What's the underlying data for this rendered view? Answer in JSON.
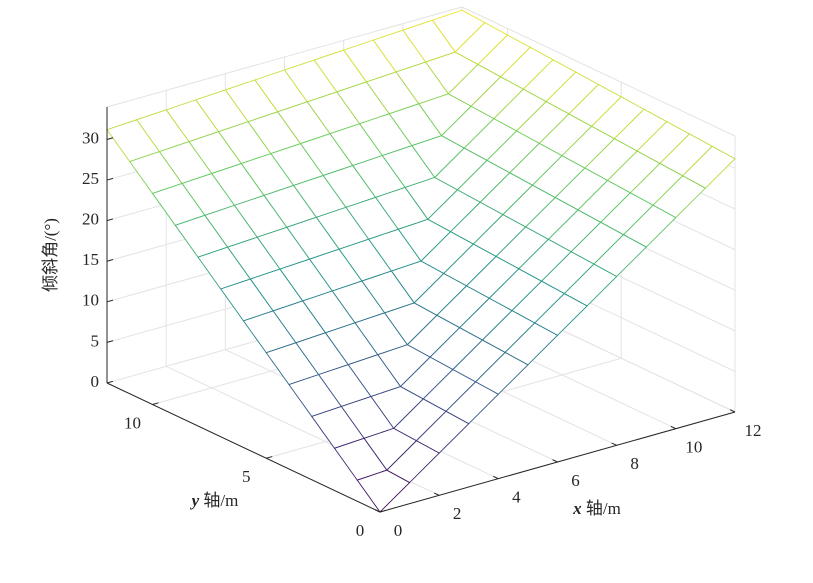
{
  "chart_data": {
    "type": "surface",
    "zlabel": "倾斜角/(°)",
    "xlabel_var": "x",
    "xlabel": "轴/m",
    "ylabel_var": "y",
    "ylabel": "轴/m",
    "x": [
      0,
      1,
      2,
      3,
      4,
      5,
      6,
      7,
      8,
      9,
      10,
      11,
      12
    ],
    "y": [
      0,
      1,
      2,
      3,
      4,
      5,
      6,
      7,
      8,
      9,
      10,
      11,
      12
    ],
    "z": [
      [
        0,
        2.6,
        5.2,
        7.8,
        10.4,
        13,
        15.6,
        18.2,
        20.8,
        23.4,
        26,
        28.6,
        31.2
      ],
      [
        2.6,
        2.8,
        5.4,
        8.0,
        10.6,
        13.2,
        15.8,
        18.4,
        21,
        23.6,
        26.2,
        28.8,
        31.4
      ],
      [
        5.2,
        5.4,
        5.6,
        8.2,
        10.8,
        13.4,
        16,
        18.6,
        21.2,
        23.8,
        26.4,
        29,
        31.6
      ],
      [
        7.8,
        8.0,
        8.2,
        8.4,
        11,
        13.6,
        16.2,
        18.8,
        21.4,
        24,
        26.6,
        29.2,
        31.8
      ],
      [
        10.4,
        10.6,
        10.8,
        11,
        11.2,
        13.8,
        16.4,
        19,
        21.6,
        24.2,
        26.8,
        29.4,
        32
      ],
      [
        13,
        13.2,
        13.4,
        13.6,
        13.8,
        14,
        16.6,
        19.2,
        21.8,
        24.4,
        27,
        29.6,
        32.2
      ],
      [
        15.6,
        15.8,
        16,
        16.2,
        16.4,
        16.6,
        16.8,
        19.4,
        22,
        24.6,
        27.2,
        29.8,
        32.4
      ],
      [
        18.2,
        18.4,
        18.6,
        18.8,
        19,
        19.2,
        19.4,
        19.6,
        22.2,
        24.8,
        27.4,
        30,
        32.6
      ],
      [
        20.8,
        21,
        21.2,
        21.4,
        21.6,
        21.8,
        22,
        22.2,
        22.4,
        25,
        27.6,
        30.2,
        32.8
      ],
      [
        23.4,
        23.6,
        23.8,
        24,
        24.2,
        24.4,
        24.6,
        24.8,
        25,
        25.2,
        27.8,
        30.4,
        33
      ],
      [
        26,
        26.2,
        26.4,
        26.6,
        26.8,
        27,
        27.2,
        27.4,
        27.6,
        27.8,
        28,
        30.6,
        33.2
      ],
      [
        28.6,
        28.8,
        29,
        29.2,
        29.4,
        29.6,
        29.8,
        30,
        30.2,
        30.4,
        30.6,
        30.8,
        33.4
      ],
      [
        31.2,
        31.4,
        31.6,
        31.8,
        32,
        32.2,
        32.4,
        32.6,
        32.8,
        33,
        33.2,
        33.4,
        33.6
      ]
    ],
    "xlim": [
      0,
      12
    ],
    "ylim": [
      0,
      12
    ],
    "zlim": [
      0,
      34
    ],
    "xticks": [
      0,
      2,
      4,
      6,
      8,
      10,
      12
    ],
    "yticks": [
      0,
      5,
      10
    ],
    "zticks": [
      0,
      5,
      10,
      15,
      20,
      25,
      30
    ],
    "grid": true,
    "colormap": [
      "#440154",
      "#3b528b",
      "#21918c",
      "#5ec962",
      "#fde725"
    ]
  }
}
